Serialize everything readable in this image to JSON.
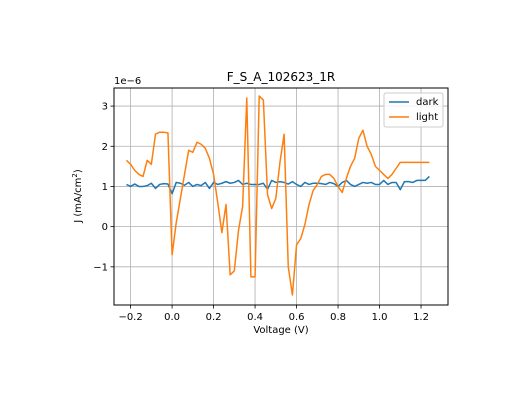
{
  "chart_data": {
    "type": "line",
    "title": "F_S_A_102623_1R",
    "xlabel": "Voltage (V)",
    "ylabel_main": "J (mA/cm",
    "ylabel_sup": "2",
    "ylabel_end": ")",
    "y_offset_text": "1e−6",
    "xlim": [
      -0.28,
      1.33
    ],
    "ylim": [
      -1.95,
      3.45
    ],
    "x_ticks": [
      -0.2,
      0.0,
      0.2,
      0.4,
      0.6,
      0.8,
      1.0,
      1.2
    ],
    "x_tick_labels": [
      "−0.2",
      "0.0",
      "0.2",
      "0.4",
      "0.6",
      "0.8",
      "1.0",
      "1.2"
    ],
    "y_ticks": [
      -1,
      0,
      1,
      2,
      3
    ],
    "y_tick_labels": [
      "−1",
      "0",
      "1",
      "2",
      "3"
    ],
    "grid": true,
    "legend_position": "upper-right",
    "series": [
      {
        "name": "dark",
        "color": "#1f77b4",
        "x": [
          -0.22,
          -0.2,
          -0.18,
          -0.16,
          -0.14,
          -0.12,
          -0.1,
          -0.08,
          -0.06,
          -0.04,
          -0.02,
          0.0,
          0.02,
          0.04,
          0.06,
          0.08,
          0.1,
          0.12,
          0.14,
          0.16,
          0.18,
          0.2,
          0.22,
          0.24,
          0.26,
          0.28,
          0.3,
          0.32,
          0.34,
          0.36,
          0.38,
          0.4,
          0.42,
          0.44,
          0.46,
          0.48,
          0.5,
          0.52,
          0.54,
          0.56,
          0.58,
          0.6,
          0.62,
          0.64,
          0.66,
          0.68,
          0.7,
          0.72,
          0.74,
          0.76,
          0.78,
          0.8,
          0.82,
          0.84,
          0.86,
          0.88,
          0.9,
          0.92,
          0.94,
          0.96,
          0.98,
          1.0,
          1.02,
          1.04,
          1.06,
          1.08,
          1.1,
          1.12,
          1.14,
          1.16,
          1.18,
          1.2,
          1.22,
          1.24
        ],
        "y": [
          1.05,
          1.0,
          1.06,
          1.0,
          1.0,
          1.02,
          1.08,
          0.95,
          1.05,
          1.07,
          1.06,
          0.82,
          1.1,
          1.08,
          1.03,
          1.1,
          1.0,
          1.05,
          1.02,
          1.1,
          0.95,
          1.1,
          1.05,
          1.08,
          1.12,
          1.08,
          1.1,
          1.15,
          1.05,
          1.08,
          1.05,
          1.05,
          1.05,
          1.08,
          0.93,
          1.15,
          1.1,
          1.12,
          1.1,
          1.06,
          1.12,
          1.05,
          1.0,
          1.1,
          1.05,
          1.08,
          1.08,
          1.07,
          1.05,
          1.1,
          1.07,
          1.0,
          1.1,
          1.15,
          1.05,
          1.0,
          1.05,
          1.1,
          1.08,
          1.1,
          1.05,
          1.05,
          1.15,
          1.05,
          1.1,
          1.1,
          0.92,
          1.12,
          1.12,
          1.1,
          1.15,
          1.15,
          1.15,
          1.25
        ]
      },
      {
        "name": "light",
        "color": "#ff7f0e",
        "x": [
          -0.22,
          -0.2,
          -0.18,
          -0.16,
          -0.14,
          -0.12,
          -0.1,
          -0.08,
          -0.06,
          -0.04,
          -0.02,
          0.0,
          0.02,
          0.04,
          0.06,
          0.08,
          0.1,
          0.12,
          0.14,
          0.16,
          0.18,
          0.2,
          0.22,
          0.24,
          0.26,
          0.28,
          0.3,
          0.32,
          0.34,
          0.36,
          0.38,
          0.4,
          0.42,
          0.44,
          0.46,
          0.48,
          0.5,
          0.52,
          0.54,
          0.56,
          0.58,
          0.6,
          0.62,
          0.64,
          0.66,
          0.68,
          0.7,
          0.72,
          0.74,
          0.76,
          0.78,
          0.8,
          0.82,
          0.84,
          0.86,
          0.88,
          0.9,
          0.92,
          0.94,
          0.96,
          0.98,
          1.0,
          1.02,
          1.04,
          1.06,
          1.08,
          1.1,
          1.12,
          1.14,
          1.16,
          1.18,
          1.2,
          1.22,
          1.24
        ],
        "y": [
          1.65,
          1.55,
          1.4,
          1.3,
          1.25,
          1.65,
          1.55,
          2.3,
          2.35,
          2.35,
          2.33,
          -0.7,
          0.1,
          0.7,
          1.3,
          1.9,
          1.85,
          2.1,
          2.05,
          1.95,
          1.7,
          1.3,
          0.6,
          -0.15,
          0.55,
          -1.2,
          -1.1,
          -0.1,
          0.5,
          3.2,
          -1.25,
          -1.25,
          3.25,
          3.15,
          0.8,
          0.45,
          0.7,
          1.6,
          2.3,
          -1.0,
          -1.7,
          -0.45,
          -0.3,
          0.05,
          0.55,
          0.9,
          1.05,
          1.25,
          1.3,
          1.3,
          1.2,
          1.0,
          0.85,
          1.2,
          1.5,
          1.7,
          2.2,
          2.4,
          2.0,
          1.8,
          1.5,
          1.4,
          1.3,
          1.2,
          1.3,
          1.45,
          1.6,
          1.6,
          1.6,
          1.6,
          1.6,
          1.6,
          1.6,
          1.6
        ]
      }
    ]
  }
}
